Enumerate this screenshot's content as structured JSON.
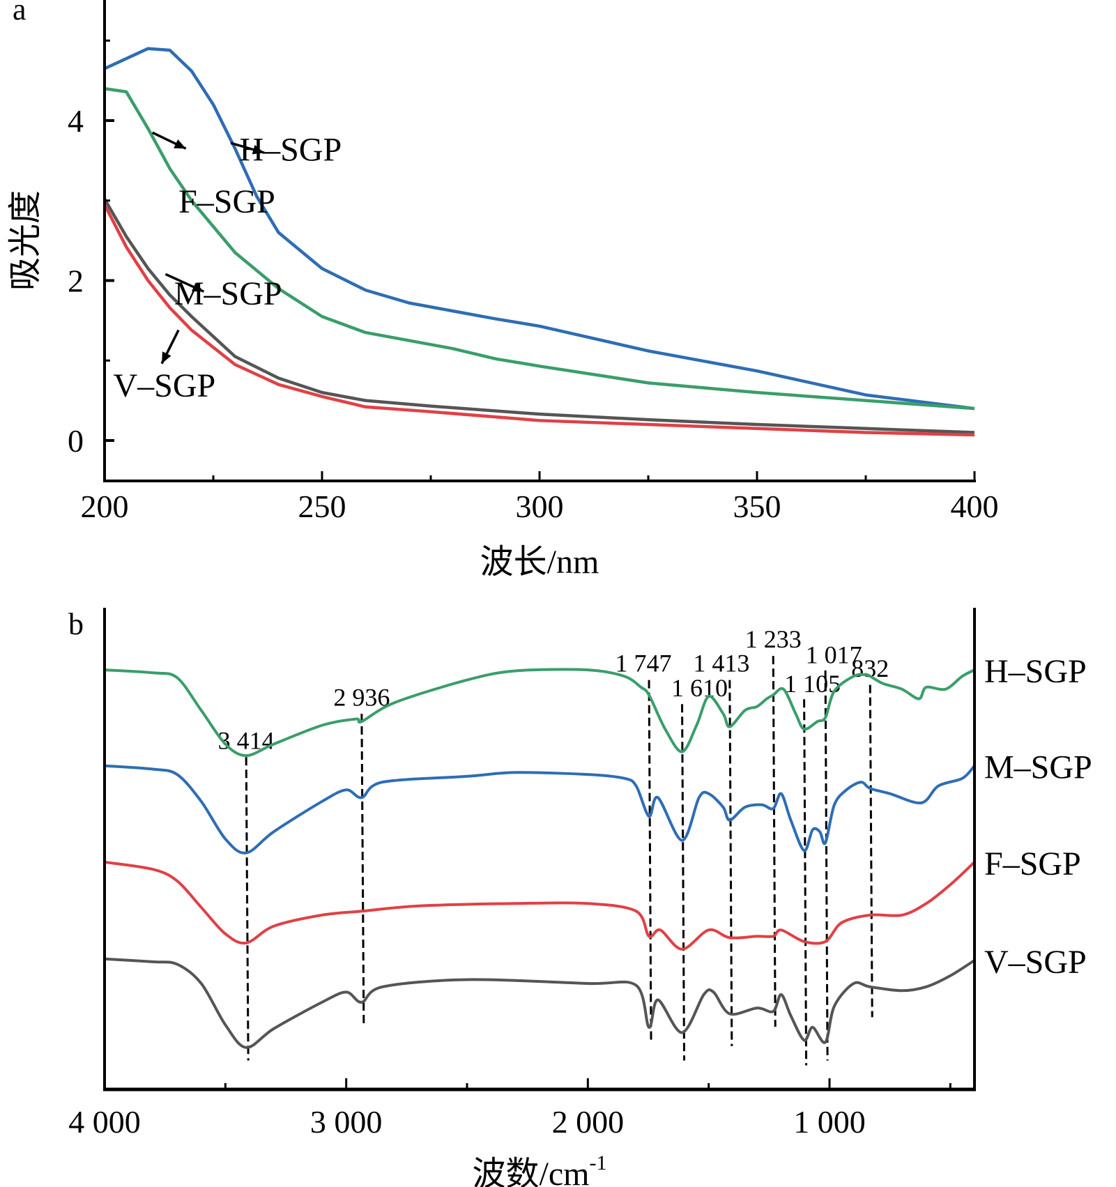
{
  "chart_data": [
    {
      "panel": "a",
      "type": "line",
      "title": "",
      "xlabel": "波长/nm",
      "ylabel": "吸光度",
      "xlim": [
        200,
        400
      ],
      "ylim": [
        -0.55,
        5.5
      ],
      "xticks": [
        200,
        250,
        300,
        350,
        400
      ],
      "xtick_labels": [
        "200",
        "250",
        "300",
        "350",
        "400"
      ],
      "x_minor_ticks": [
        225,
        275,
        325,
        375
      ],
      "yticks": [
        0,
        2,
        4
      ],
      "ytick_labels": [
        "0",
        "2",
        "4"
      ],
      "y_minor_ticks": [
        1,
        3,
        5
      ],
      "grid": false,
      "legend": "inline annotations with arrows",
      "series": [
        {
          "name": "H-SGP",
          "label": "H–SGP",
          "color": "#2e6db4",
          "x": [
            200,
            210,
            215,
            220,
            225,
            230,
            235,
            240,
            250,
            260,
            270,
            280,
            290,
            300,
            325,
            350,
            375,
            400
          ],
          "values": [
            4.65,
            4.9,
            4.88,
            4.62,
            4.2,
            3.65,
            3.05,
            2.6,
            2.15,
            1.88,
            1.72,
            1.62,
            1.52,
            1.43,
            1.12,
            0.87,
            0.57,
            0.4
          ]
        },
        {
          "name": "F-SGP",
          "label": "F–SGP",
          "color": "#3a9e6a",
          "x": [
            200,
            205,
            210,
            215,
            220,
            230,
            240,
            250,
            260,
            270,
            280,
            290,
            300,
            325,
            350,
            375,
            400
          ],
          "values": [
            4.4,
            4.36,
            3.9,
            3.4,
            3.0,
            2.35,
            1.9,
            1.55,
            1.35,
            1.25,
            1.15,
            1.02,
            0.93,
            0.72,
            0.6,
            0.5,
            0.4
          ]
        },
        {
          "name": "M-SGP",
          "label": "M–SGP",
          "color": "#555555",
          "x": [
            200,
            205,
            210,
            215,
            220,
            230,
            240,
            250,
            260,
            275,
            300,
            325,
            350,
            375,
            400
          ],
          "values": [
            3.02,
            2.55,
            2.15,
            1.82,
            1.55,
            1.05,
            0.78,
            0.6,
            0.5,
            0.43,
            0.33,
            0.26,
            0.2,
            0.15,
            0.1
          ]
        },
        {
          "name": "V-SGP",
          "label": "V–SGP",
          "color": "#e04045",
          "x": [
            200,
            205,
            210,
            215,
            220,
            230,
            240,
            250,
            260,
            275,
            300,
            325,
            350,
            375,
            400
          ],
          "values": [
            2.95,
            2.42,
            2.0,
            1.66,
            1.38,
            0.95,
            0.7,
            0.55,
            0.42,
            0.36,
            0.25,
            0.2,
            0.15,
            0.1,
            0.07
          ]
        }
      ],
      "annotations": [
        {
          "series": "H-SGP",
          "text": "H–SGP",
          "arrow_from_x": 229,
          "arrow_from_y": 3.72,
          "label_x": 231,
          "label_y": 3.5
        },
        {
          "series": "F-SGP",
          "text": "F–SGP",
          "arrow_from_x": 211,
          "arrow_from_y": 3.85,
          "label_x": 217,
          "label_y": 2.85
        },
        {
          "series": "M-SGP",
          "text": "M–SGP",
          "arrow_from_x": 214,
          "arrow_from_y": 2.08,
          "label_x": 216,
          "label_y": 1.7
        },
        {
          "series": "V-SGP",
          "text": "V–SGP",
          "arrow_from_x": 217,
          "arrow_from_y": 1.38,
          "label_x": 202,
          "label_y": 0.55
        }
      ]
    },
    {
      "panel": "b",
      "type": "line",
      "title": "",
      "xlabel": "波数/cm",
      "xlabel_superscript": "-1",
      "ylabel": "",
      "xlim": [
        4000,
        400
      ],
      "x_reversed": true,
      "ylim": [
        0,
        100
      ],
      "y_units": "relative transmittance (offset traces)",
      "xticks": [
        4000,
        3000,
        2000,
        1000
      ],
      "xtick_labels": [
        "4 000",
        "3 000",
        "2 000",
        "1 000"
      ],
      "x_minor_ticks": [
        3500,
        2500,
        1500,
        500
      ],
      "grid": false,
      "legend": "right (labels beside trace ends)",
      "series": [
        {
          "name": "H-SGP",
          "label": "H–SGP",
          "color": "#3a9e6a",
          "x": [
            4000,
            3800,
            3700,
            3600,
            3500,
            3414,
            3300,
            3100,
            2960,
            2936,
            2800,
            2500,
            2300,
            2000,
            1850,
            1780,
            1747,
            1680,
            1610,
            1550,
            1500,
            1440,
            1413,
            1350,
            1300,
            1260,
            1233,
            1190,
            1140,
            1105,
            1050,
            1017,
            980,
            900,
            850,
            832,
            780,
            700,
            630,
            600,
            520,
            450,
            400
          ],
          "values": [
            87.1,
            86.5,
            85.5,
            78.7,
            71.7,
            69.3,
            71.7,
            75.6,
            76.9,
            76.4,
            80.3,
            85.0,
            86.9,
            87.1,
            85.8,
            83.5,
            81.9,
            74.8,
            70.1,
            75.6,
            81.6,
            78.0,
            75.3,
            78.7,
            79.5,
            81.1,
            81.9,
            83.1,
            78.0,
            74.8,
            76.4,
            77.2,
            82.7,
            85.8,
            86.1,
            85.8,
            84.3,
            83.1,
            81.1,
            83.5,
            83.1,
            85.8,
            87.1
          ]
        },
        {
          "name": "M-SGP",
          "label": "M–SGP",
          "color": "#2e6db4",
          "x": [
            4000,
            3800,
            3700,
            3600,
            3500,
            3414,
            3300,
            3100,
            3000,
            2936,
            2850,
            2500,
            2300,
            2000,
            1850,
            1800,
            1747,
            1710,
            1610,
            1540,
            1500,
            1440,
            1413,
            1350,
            1280,
            1233,
            1200,
            1160,
            1105,
            1070,
            1040,
            1017,
            980,
            930,
            870,
            832,
            750,
            620,
            550,
            450,
            400
          ],
          "values": [
            67.2,
            66.5,
            65.4,
            59.8,
            52.0,
            49.1,
            53.5,
            59.8,
            62.2,
            60.6,
            63.8,
            65.0,
            65.8,
            65.4,
            64.6,
            63.0,
            56.7,
            60.6,
            51.7,
            60.6,
            61.4,
            58.6,
            55.9,
            58.6,
            59.1,
            58.3,
            61.4,
            55.9,
            49.6,
            53.9,
            53.5,
            51.2,
            59.1,
            62.2,
            63.8,
            62.5,
            61.4,
            59.5,
            63.0,
            64.6,
            67.2
          ]
        },
        {
          "name": "F-SGP",
          "label": "F–SGP",
          "color": "#e04045",
          "x": [
            4000,
            3800,
            3700,
            3600,
            3500,
            3414,
            3300,
            3100,
            2936,
            2700,
            2300,
            2000,
            1800,
            1747,
            1700,
            1610,
            1500,
            1413,
            1300,
            1233,
            1200,
            1105,
            1017,
            950,
            832,
            700,
            600,
            500,
            400
          ],
          "values": [
            47.2,
            45.7,
            43.3,
            37.8,
            32.3,
            30.4,
            33.9,
            36.2,
            37.0,
            38.1,
            38.6,
            38.6,
            37.0,
            31.8,
            33.1,
            29.1,
            33.1,
            31.5,
            31.8,
            31.8,
            33.1,
            30.7,
            30.7,
            34.6,
            36.2,
            36.2,
            38.6,
            42.5,
            47.2
          ]
        },
        {
          "name": "V-SGP",
          "label": "V–SGP",
          "color": "#555555",
          "x": [
            4000,
            3800,
            3700,
            3600,
            3500,
            3414,
            3300,
            3100,
            3000,
            2936,
            2850,
            2500,
            2000,
            1800,
            1747,
            1710,
            1610,
            1520,
            1480,
            1413,
            1300,
            1233,
            1200,
            1160,
            1105,
            1070,
            1017,
            980,
            900,
            832,
            700,
            600,
            500,
            400
          ],
          "values": [
            27.1,
            26.5,
            26.0,
            22.0,
            13.4,
            8.7,
            12.6,
            18.1,
            20.2,
            18.1,
            21.3,
            22.8,
            22.0,
            21.6,
            12.9,
            18.6,
            11.8,
            19.7,
            20.2,
            15.7,
            16.9,
            16.2,
            19.7,
            15.3,
            10.2,
            12.9,
            9.8,
            17.3,
            22.0,
            21.3,
            20.5,
            21.3,
            23.6,
            26.8
          ]
        }
      ],
      "peak_markers": [
        {
          "wavenumber": 3414,
          "label": "3 414",
          "y_top": 69,
          "y_bottom": 6
        },
        {
          "wavenumber": 2936,
          "label": "2 936",
          "y_top": 78,
          "y_bottom": 13
        },
        {
          "wavenumber": 1747,
          "label": "1 747",
          "y_top": 85,
          "y_bottom": 10
        },
        {
          "wavenumber": 1610,
          "label": "1 610",
          "y_top": 80,
          "y_bottom": 6
        },
        {
          "wavenumber": 1413,
          "label": "1 413",
          "y_top": 85,
          "y_bottom": 9
        },
        {
          "wavenumber": 1233,
          "label": "1 233",
          "y_top": 90,
          "y_bottom": 13
        },
        {
          "wavenumber": 1105,
          "label": "1 105",
          "y_top": 81,
          "y_bottom": 5
        },
        {
          "wavenumber": 1017,
          "label": "1 017",
          "y_top": 87,
          "y_bottom": 6
        },
        {
          "wavenumber": 832,
          "label": "832",
          "y_top": 84,
          "y_bottom": 15
        }
      ]
    }
  ],
  "panels": {
    "a": {
      "letter": "a"
    },
    "b": {
      "letter": "b"
    }
  }
}
